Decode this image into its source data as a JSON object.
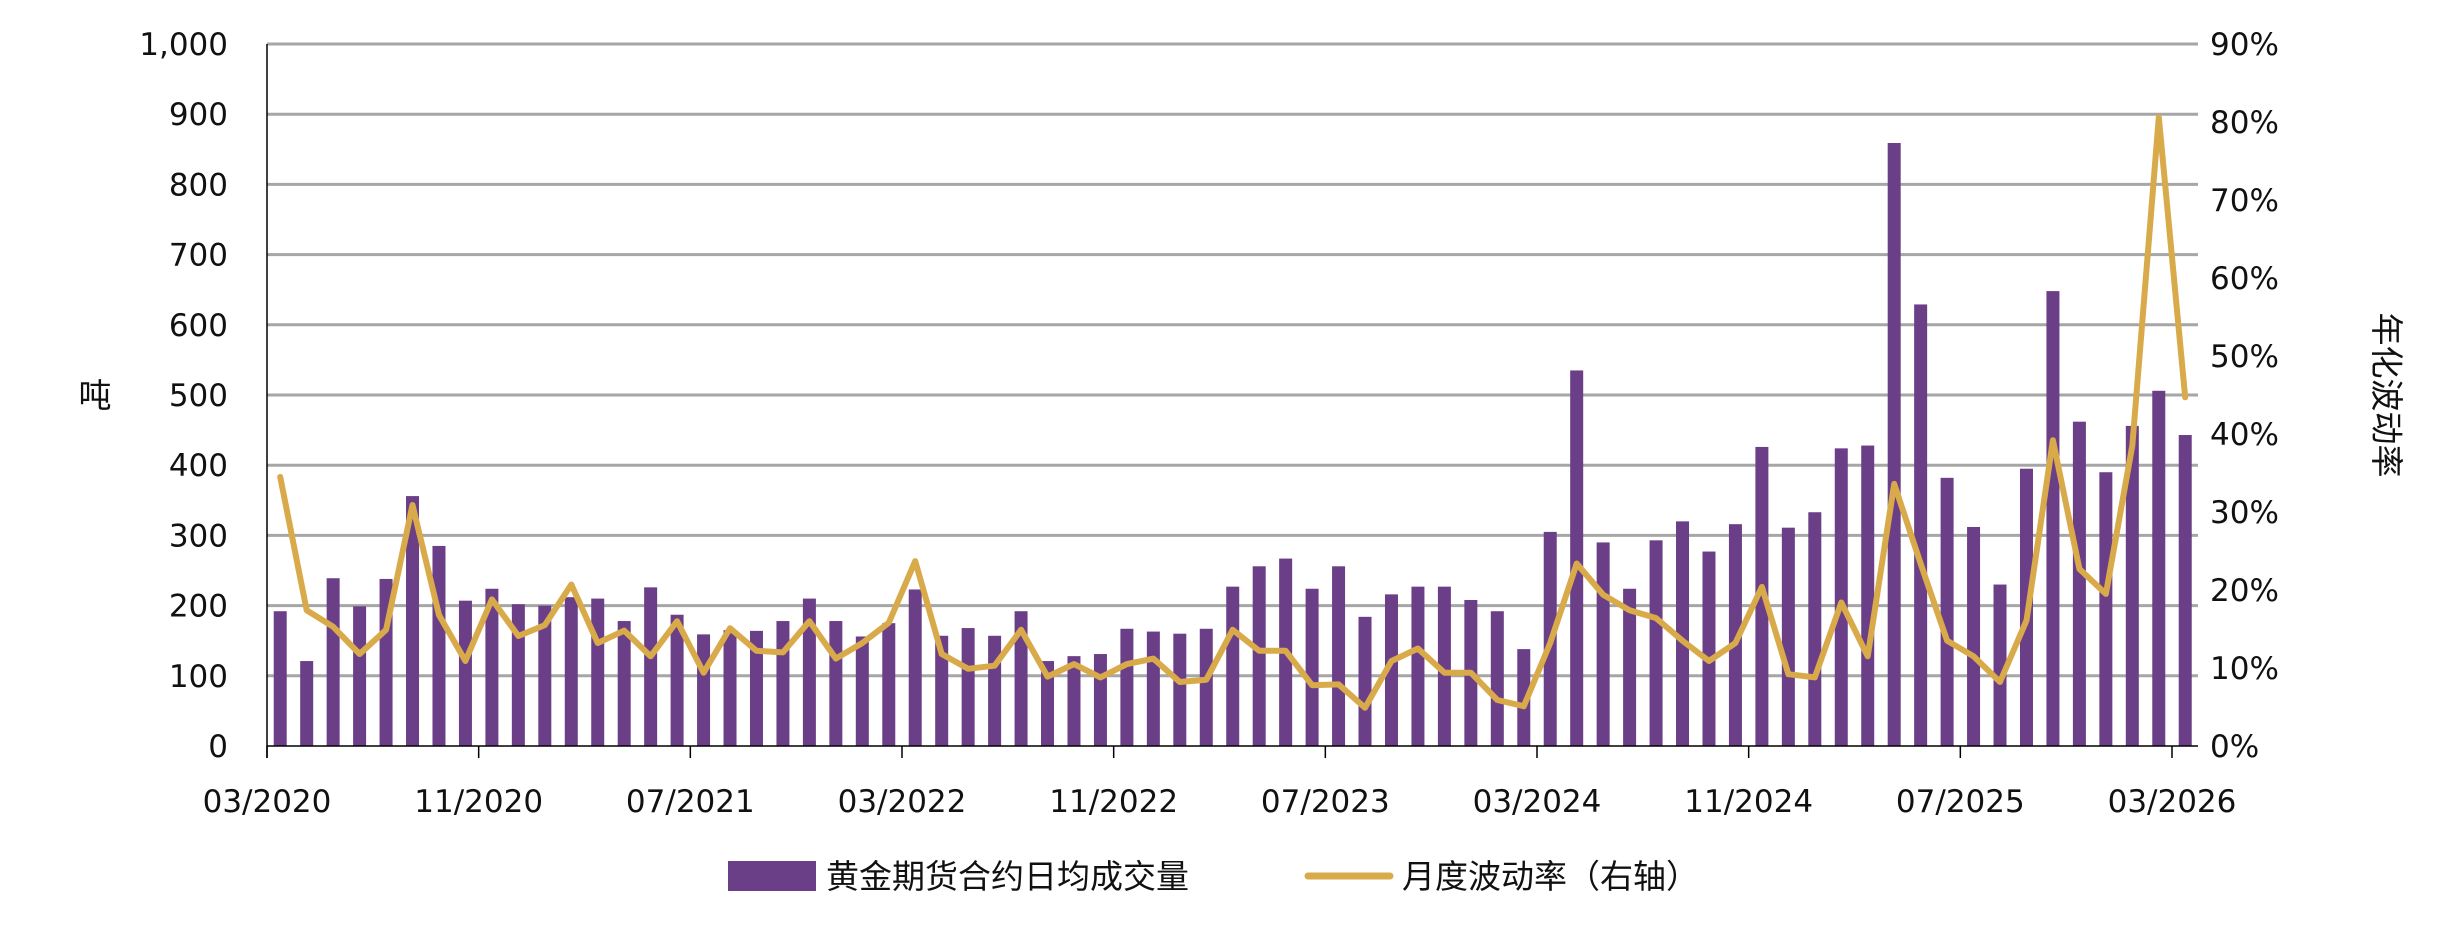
{
  "chart_data": {
    "type": "bar+line",
    "title": "",
    "xlabel": "",
    "ylabel": "吨",
    "y2label": "年化波动率",
    "ylim": [
      0,
      1000
    ],
    "y2lim": [
      0,
      90
    ],
    "grid": true,
    "legend_position": "bottom",
    "y_ticks": [
      "0",
      "100",
      "200",
      "300",
      "400",
      "500",
      "600",
      "700",
      "800",
      "900",
      "1,000"
    ],
    "y2_ticks": [
      "0%",
      "10%",
      "20%",
      "30%",
      "40%",
      "50%",
      "60%",
      "70%",
      "80%",
      "90%"
    ],
    "x_ticks": [
      "03/2020",
      "11/2020",
      "07/2021",
      "03/2022",
      "11/2022",
      "07/2023",
      "03/2024",
      "11/2024",
      "07/2025",
      "03/2026"
    ],
    "categories": [
      "03/2020",
      "04/2020",
      "05/2020",
      "06/2020",
      "07/2020",
      "08/2020",
      "09/2020",
      "10/2020",
      "11/2020",
      "12/2020",
      "01/2021",
      "02/2021",
      "03/2021",
      "04/2021",
      "05/2021",
      "06/2021",
      "07/2021",
      "08/2021",
      "09/2021",
      "10/2021",
      "11/2021",
      "12/2021",
      "01/2022",
      "02/2022",
      "03/2022",
      "04/2022",
      "05/2022",
      "06/2022",
      "07/2022",
      "08/2022",
      "09/2022",
      "10/2022",
      "11/2022",
      "12/2022",
      "01/2023",
      "02/2023",
      "03/2023",
      "04/2023",
      "05/2023",
      "06/2023",
      "07/2023",
      "08/2023",
      "09/2023",
      "10/2023",
      "11/2023",
      "12/2023",
      "01/2024",
      "02/2024",
      "03/2024",
      "04/2024",
      "05/2024",
      "06/2024",
      "07/2024",
      "08/2024",
      "09/2024",
      "10/2024",
      "11/2024",
      "12/2024",
      "01/2025",
      "02/2025",
      "03/2025",
      "04/2025",
      "05/2025",
      "06/2025",
      "07/2025",
      "08/2025",
      "09/2025",
      "10/2025",
      "11/2025",
      "12/2025",
      "01/2026",
      "02/2026",
      "03/2026"
    ],
    "series": [
      {
        "name": "黄金期货合约日均成交量",
        "type": "bar",
        "axis": "left",
        "color": "#6b3f87",
        "values": [
          192,
          121,
          239,
          199,
          238,
          356,
          285,
          207,
          224,
          202,
          200,
          212,
          210,
          178,
          226,
          187,
          159,
          165,
          164,
          178,
          210,
          178,
          156,
          175,
          223,
          157,
          168,
          157,
          192,
          121,
          128,
          131,
          167,
          163,
          160,
          167,
          227,
          256,
          267,
          224,
          256,
          184,
          216,
          227,
          227,
          208,
          192,
          138,
          305,
          535,
          290,
          224,
          293,
          320,
          277,
          316,
          426,
          311,
          333,
          424,
          428,
          859,
          629,
          382,
          312,
          230,
          395,
          648,
          462,
          390,
          456,
          506,
          443
        ]
      },
      {
        "name": "月度波动率（右轴）",
        "type": "line",
        "axis": "right",
        "color": "#d9aa4a",
        "values": [
          34.5,
          17.4,
          15.3,
          11.8,
          14.9,
          30.9,
          16.8,
          10.9,
          18.8,
          14.1,
          15.5,
          20.7,
          13.2,
          14.8,
          11.5,
          16.0,
          9.4,
          15.1,
          12.2,
          12.0,
          16.0,
          11.2,
          13.2,
          15.8,
          23.7,
          11.8,
          9.9,
          10.3,
          14.9,
          8.9,
          10.5,
          8.8,
          10.5,
          11.2,
          8.2,
          8.5,
          14.9,
          12.2,
          12.2,
          7.8,
          7.9,
          4.9,
          10.9,
          12.5,
          9.4,
          9.4,
          5.9,
          5.1,
          13.2,
          23.4,
          19.4,
          17.4,
          16.4,
          13.5,
          10.9,
          13.2,
          20.4,
          9.2,
          8.8,
          18.4,
          11.5,
          33.6,
          23.4,
          13.5,
          11.5,
          8.2,
          16.1,
          39.2,
          22.7,
          19.5,
          38.5,
          80.6,
          44.7
        ]
      }
    ]
  },
  "legend": {
    "bar_label": "黄金期货合约日均成交量",
    "line_label": "月度波动率（右轴）"
  }
}
